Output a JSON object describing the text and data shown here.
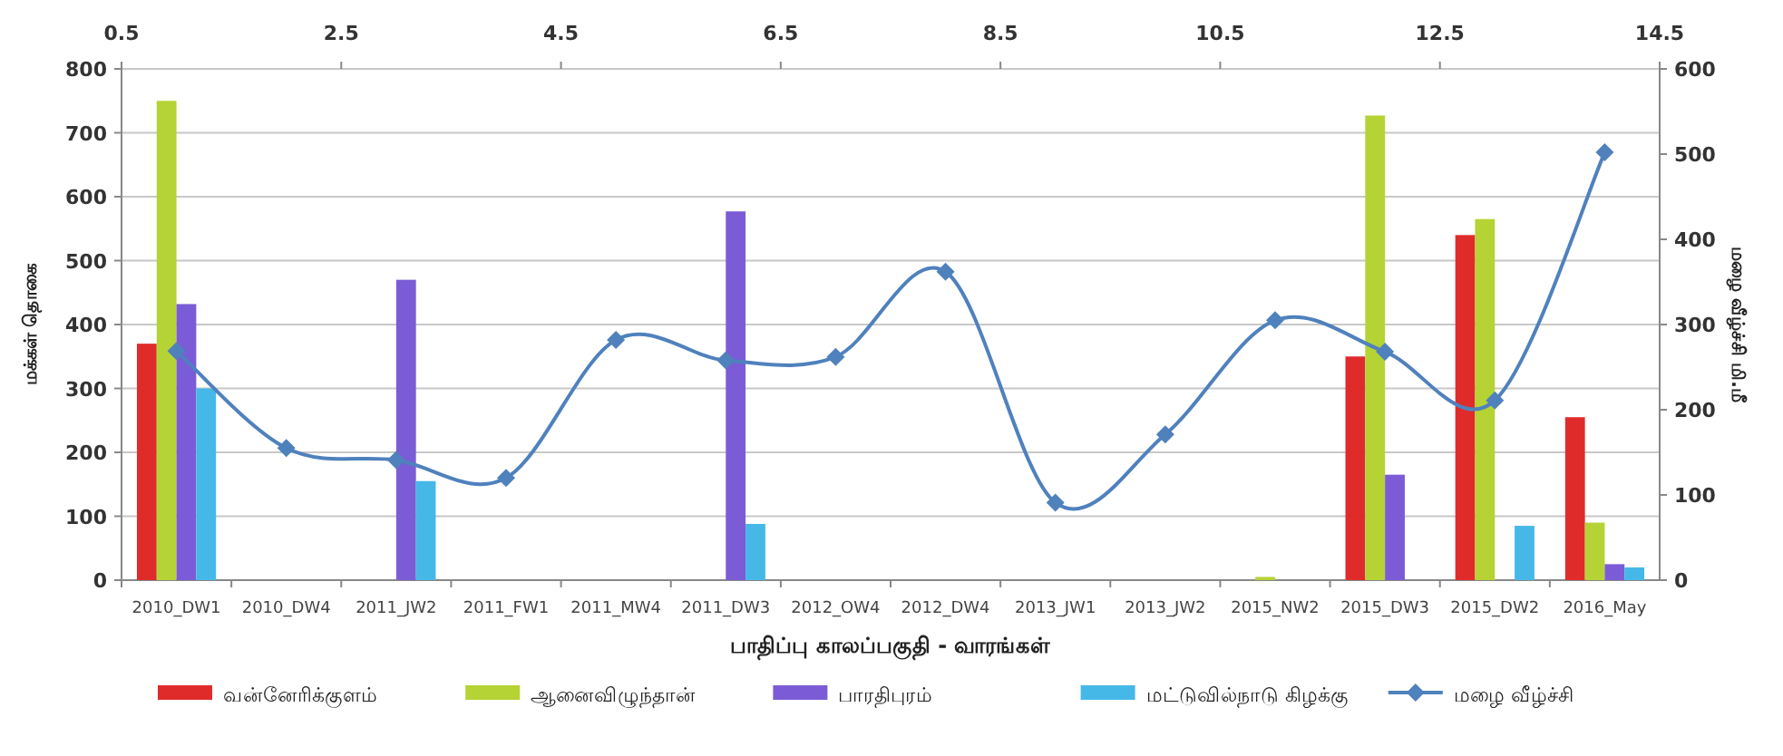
{
  "chart_data": {
    "type": "bar",
    "xlabel": "பாதிப்பு காலப்பகுதி - வாரங்கள்",
    "ylabel": "மக்கள் தொகை",
    "y2label": "மழை வீழ்ச்சி மி.மீ",
    "categories": [
      "2010_DW1",
      "2010_DW4",
      "2011_JW2",
      "2011_FW1",
      "2011_MW4",
      "2011_DW3",
      "2012_OW4",
      "2012_DW4",
      "2013_JW1",
      "2013_JW2",
      "2015_NW2",
      "2015_DW3",
      "2015_DW2",
      "2016_May"
    ],
    "series": [
      {
        "name": "வன்னேரிக்குளம்",
        "color": "#e02b2b",
        "values": [
          370,
          null,
          null,
          null,
          null,
          null,
          null,
          null,
          null,
          null,
          null,
          350,
          540,
          255
        ]
      },
      {
        "name": "ஆனைவிழுந்தான்",
        "color": "#b5d334",
        "values": [
          750,
          null,
          null,
          null,
          null,
          null,
          null,
          null,
          null,
          null,
          5,
          727,
          565,
          90
        ]
      },
      {
        "name": "பாரதிபுரம்",
        "color": "#7b5cd6",
        "values": [
          432,
          null,
          470,
          null,
          null,
          577,
          null,
          null,
          null,
          null,
          null,
          165,
          null,
          25
        ]
      },
      {
        "name": "மட்டுவில்நாடு கிழக்கு",
        "color": "#45b8e8",
        "values": [
          300,
          null,
          155,
          null,
          null,
          88,
          null,
          null,
          null,
          null,
          null,
          null,
          85,
          20
        ]
      },
      {
        "name": "மழை வீழ்ச்சி",
        "type": "line",
        "axis": "y2",
        "color": "#4f81bd",
        "marker": "diamond",
        "values": [
          269,
          155,
          141,
          120,
          282,
          258,
          262,
          362,
          91,
          171,
          305,
          268,
          211,
          502
        ]
      }
    ],
    "ylim": [
      0,
      800
    ],
    "yticks": [
      0,
      100,
      200,
      300,
      400,
      500,
      600,
      700,
      800
    ],
    "y2lim": [
      0,
      600
    ],
    "y2ticks": [
      0,
      100,
      200,
      300,
      400,
      500,
      600
    ],
    "x2lim": [
      0.5,
      14.5
    ],
    "x2ticks": [
      0.5,
      2.5,
      4.5,
      6.5,
      8.5,
      10.5,
      12.5,
      14.5
    ],
    "grid": "y",
    "legend": "bottom"
  }
}
